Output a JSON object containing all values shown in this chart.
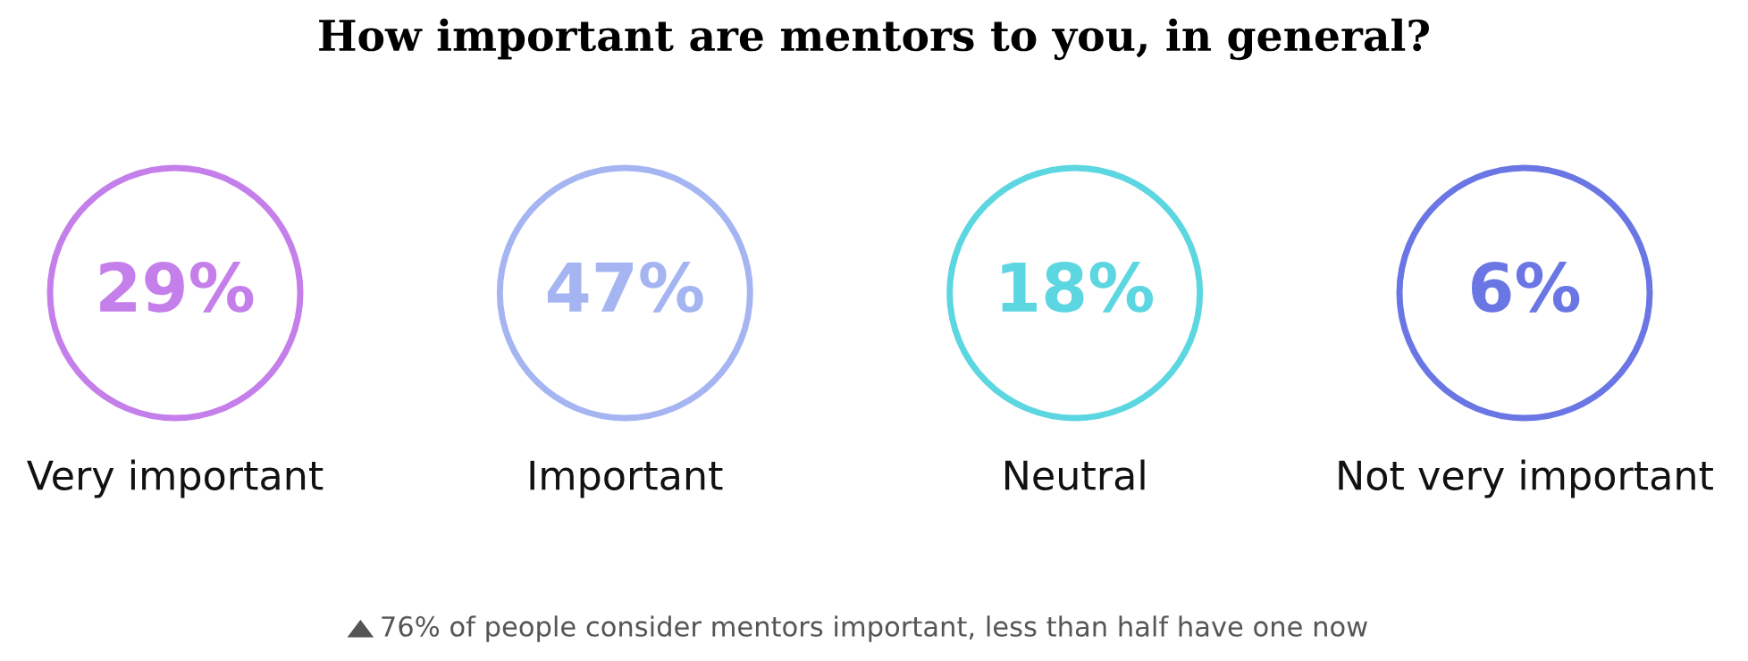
{
  "chart_data": {
    "type": "other",
    "title": "How important are mentors to you, in general?",
    "categories": [
      "Very important",
      "Important",
      "Neutral",
      "Not very important"
    ],
    "values": [
      29,
      47,
      18,
      6
    ],
    "value_labels": [
      "29%",
      "47%",
      "18%",
      "6%"
    ],
    "colors": [
      "#c57fea",
      "#a5b5f2",
      "#5cd6e0",
      "#6976e4"
    ],
    "annotations": [
      "76% of people consider mentors important, less than half have one now"
    ]
  }
}
